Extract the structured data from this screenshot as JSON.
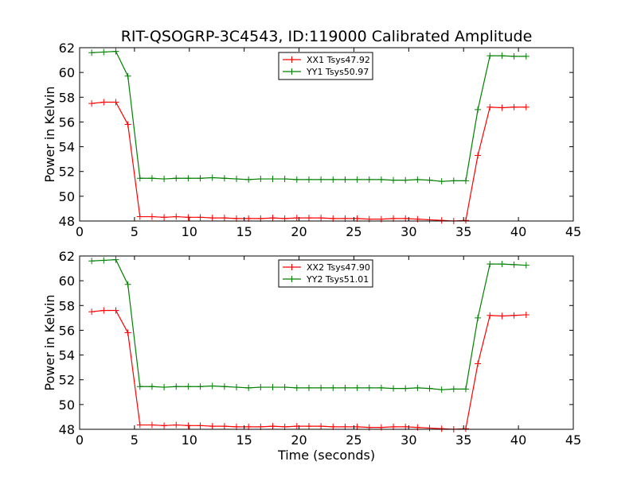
{
  "title": "RIT-QSOGRP-3C4543, ID:119000 Calibrated Amplitude",
  "chart_data": [
    {
      "type": "line",
      "ylabel": "Power in Kelvin",
      "xlabel": "",
      "xlim": [
        0,
        45
      ],
      "ylim": [
        48,
        62
      ],
      "xticks": [
        0,
        5,
        10,
        15,
        20,
        25,
        30,
        35,
        40,
        45
      ],
      "yticks": [
        48,
        50,
        52,
        54,
        56,
        58,
        60,
        62
      ],
      "grid": false,
      "legend_position": "top-center",
      "series": [
        {
          "name": "XX1 Tsys47.92",
          "color": "#ff0000",
          "x": [
            1.1,
            2.2,
            3.3,
            4.4,
            5.5,
            6.6,
            7.7,
            8.8,
            9.9,
            11.0,
            12.1,
            13.2,
            14.3,
            15.4,
            16.5,
            17.6,
            18.7,
            19.8,
            20.9,
            22.0,
            23.1,
            24.2,
            25.3,
            26.4,
            27.5,
            28.6,
            29.7,
            30.8,
            31.9,
            33.0,
            34.1,
            35.2,
            36.3,
            37.4,
            38.5,
            39.6,
            40.7
          ],
          "y": [
            57.5,
            57.6,
            57.6,
            55.8,
            48.35,
            48.35,
            48.3,
            48.35,
            48.3,
            48.3,
            48.25,
            48.25,
            48.2,
            48.2,
            48.2,
            48.25,
            48.2,
            48.25,
            48.25,
            48.25,
            48.2,
            48.2,
            48.2,
            48.15,
            48.15,
            48.2,
            48.2,
            48.15,
            48.1,
            48.05,
            48.0,
            48.05,
            53.3,
            57.2,
            57.15,
            57.2,
            57.2
          ]
        },
        {
          "name": "YY1 Tsys50.97",
          "color": "#008000",
          "x": [
            1.1,
            2.2,
            3.3,
            4.4,
            5.5,
            6.6,
            7.7,
            8.8,
            9.9,
            11.0,
            12.1,
            13.2,
            14.3,
            15.4,
            16.5,
            17.6,
            18.7,
            19.8,
            20.9,
            22.0,
            23.1,
            24.2,
            25.3,
            26.4,
            27.5,
            28.6,
            29.7,
            30.8,
            31.9,
            33.0,
            34.1,
            35.2,
            36.3,
            37.4,
            38.5,
            39.6,
            40.7
          ],
          "y": [
            61.6,
            61.65,
            61.7,
            59.7,
            51.45,
            51.45,
            51.4,
            51.45,
            51.45,
            51.45,
            51.5,
            51.45,
            51.4,
            51.35,
            51.4,
            51.4,
            51.4,
            51.35,
            51.35,
            51.35,
            51.35,
            51.35,
            51.35,
            51.35,
            51.35,
            51.3,
            51.3,
            51.35,
            51.3,
            51.2,
            51.25,
            51.25,
            57.0,
            61.35,
            61.35,
            61.3,
            61.3
          ]
        }
      ]
    },
    {
      "type": "line",
      "ylabel": "Power in Kelvin",
      "xlabel": "Time (seconds)",
      "xlim": [
        0,
        45
      ],
      "ylim": [
        48,
        62
      ],
      "xticks": [
        0,
        5,
        10,
        15,
        20,
        25,
        30,
        35,
        40,
        45
      ],
      "yticks": [
        48,
        50,
        52,
        54,
        56,
        58,
        60,
        62
      ],
      "grid": false,
      "legend_position": "top-center",
      "series": [
        {
          "name": "XX2 Tsys47.90",
          "color": "#ff0000",
          "x": [
            1.1,
            2.2,
            3.3,
            4.4,
            5.5,
            6.6,
            7.7,
            8.8,
            9.9,
            11.0,
            12.1,
            13.2,
            14.3,
            15.4,
            16.5,
            17.6,
            18.7,
            19.8,
            20.9,
            22.0,
            23.1,
            24.2,
            25.3,
            26.4,
            27.5,
            28.6,
            29.7,
            30.8,
            31.9,
            33.0,
            34.1,
            35.2,
            36.3,
            37.4,
            38.5,
            39.6,
            40.7
          ],
          "y": [
            57.5,
            57.6,
            57.6,
            55.8,
            48.35,
            48.35,
            48.3,
            48.35,
            48.3,
            48.3,
            48.25,
            48.25,
            48.2,
            48.2,
            48.2,
            48.25,
            48.2,
            48.25,
            48.25,
            48.25,
            48.2,
            48.2,
            48.2,
            48.15,
            48.15,
            48.2,
            48.2,
            48.15,
            48.1,
            48.05,
            48.0,
            48.05,
            53.3,
            57.2,
            57.15,
            57.2,
            57.25
          ]
        },
        {
          "name": "YY2 Tsys51.01",
          "color": "#008000",
          "x": [
            1.1,
            2.2,
            3.3,
            4.4,
            5.5,
            6.6,
            7.7,
            8.8,
            9.9,
            11.0,
            12.1,
            13.2,
            14.3,
            15.4,
            16.5,
            17.6,
            18.7,
            19.8,
            20.9,
            22.0,
            23.1,
            24.2,
            25.3,
            26.4,
            27.5,
            28.6,
            29.7,
            30.8,
            31.9,
            33.0,
            34.1,
            35.2,
            36.3,
            37.4,
            38.5,
            39.6,
            40.7
          ],
          "y": [
            61.6,
            61.65,
            61.7,
            59.7,
            51.45,
            51.45,
            51.4,
            51.45,
            51.45,
            51.45,
            51.5,
            51.45,
            51.4,
            51.35,
            51.4,
            51.4,
            51.4,
            51.35,
            51.35,
            51.35,
            51.35,
            51.35,
            51.35,
            51.35,
            51.35,
            51.3,
            51.3,
            51.35,
            51.3,
            51.2,
            51.25,
            51.25,
            57.0,
            61.35,
            61.35,
            61.3,
            61.25
          ]
        }
      ]
    }
  ]
}
